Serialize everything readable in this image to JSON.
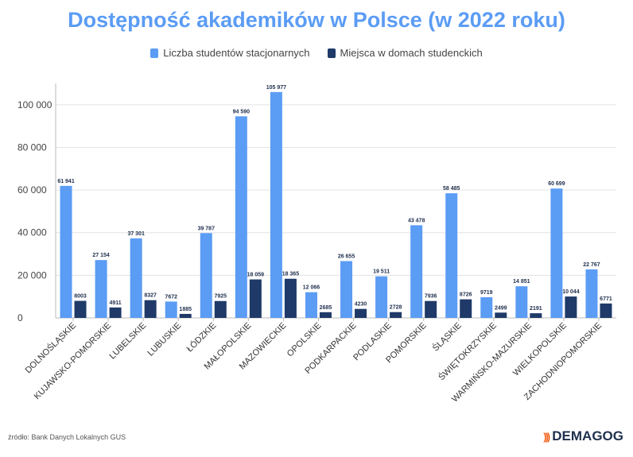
{
  "title": "Dostępność akademików w Polsce (w 2022 roku)",
  "source": "źródło: Bank Danych Lokalnych GUS",
  "brand": "DEMAGOG",
  "colors": {
    "series1": "#5B9CF4",
    "series2": "#1F3A68",
    "title": "#5B9CF4"
  },
  "chart_data": {
    "type": "bar",
    "title": "Dostępność akademików w Polsce (w 2022 roku)",
    "xlabel": "",
    "ylabel": "",
    "ylim": [
      0,
      110000
    ],
    "yticks": [
      0,
      20000,
      40000,
      60000,
      80000,
      100000
    ],
    "ytick_labels": [
      "0",
      "20 000",
      "40 000",
      "60 000",
      "80 000",
      "100 000"
    ],
    "legend": "top",
    "grid": true,
    "categories": [
      "DOLNOŚLĄSKIE",
      "KUJAWSKO-POMORSKIE",
      "LUBELSKIE",
      "LUBUSKIE",
      "ŁÓDZKIE",
      "MAŁOPOLSKIE",
      "MAZOWIECKIE",
      "OPOLSKIE",
      "PODKARPACKIE",
      "PODLASKIE",
      "POMORSKIE",
      "ŚLĄSKIE",
      "ŚWIĘTOKRZYSKIE",
      "WARMIŃSKO-MAZURSKIE",
      "WIELKOPOLSKIE",
      "ZACHODNIOPOMORSKIE"
    ],
    "series": [
      {
        "name": "Liczba studentów stacjonarnych",
        "values": [
          61941,
          27154,
          37301,
          7672,
          39787,
          94590,
          105977,
          12066,
          26655,
          19511,
          43478,
          58485,
          9719,
          14851,
          60699,
          22767
        ],
        "labels": [
          "61 941",
          "27 154",
          "37 301",
          "7672",
          "39 787",
          "94 590",
          "105 977",
          "12 066",
          "26 655",
          "19 511",
          "43 478",
          "58 485",
          "9719",
          "14 851",
          "60 699",
          "22 767"
        ]
      },
      {
        "name": "Miejsca w domach studenckich",
        "values": [
          8003,
          4911,
          8327,
          1885,
          7925,
          18059,
          18365,
          2685,
          4230,
          2728,
          7936,
          8726,
          2499,
          2191,
          10044,
          6771
        ],
        "labels": [
          "8003",
          "4911",
          "8327",
          "1885",
          "7925",
          "18 059",
          "18 365",
          "2685",
          "4230",
          "2728",
          "7936",
          "8726",
          "2499",
          "2191",
          "10 044",
          "6771"
        ]
      }
    ]
  }
}
